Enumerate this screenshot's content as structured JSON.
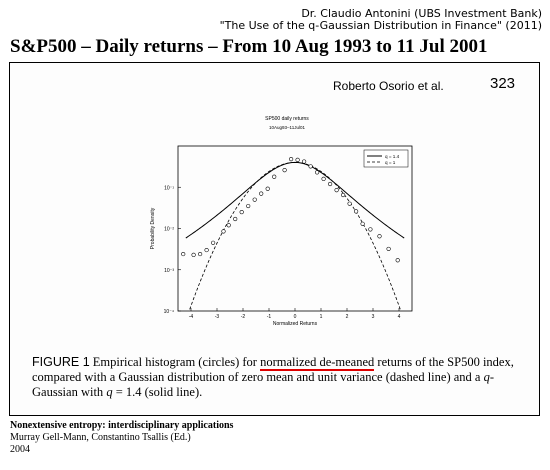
{
  "attribution": {
    "author": "Dr. Claudio Antonini (UBS Investment Bank)",
    "reference": "\"The Use of the q-Gaussian Distribution in Finance\" (2011)"
  },
  "slide_title": "S&P500 – Daily returns – From 10 Aug 1993 to 11 Jul 2001",
  "scan": {
    "author": "Roberto Osorio et al.",
    "page_number": "323"
  },
  "caption": {
    "label": "FIGURE 1",
    "part1": " Empirical histogram (circles) for ",
    "highlighted": "normalized de-meaned",
    "part2": " returns of the SP500 index, compared with a Gaussian distribution of zero mean and unit variance (dashed line) and a ",
    "q_symbol": "q",
    "part3": "-Gaussian with ",
    "q_symbol2": "q",
    "part4": " = 1.4 (solid line)."
  },
  "source": {
    "title": "Nonextensive entropy: interdisciplinary applications",
    "editors": "Murray Gell-Mann, Constantino Tsallis (Ed.)",
    "year": "2004"
  },
  "colors": {
    "underline": "#e00000",
    "ink": "#000000"
  },
  "chart_data": {
    "type": "scatter",
    "title": "SP500 daily returns",
    "subtitle": "10Aug93–11Jul01",
    "xlabel": "Normalized Returns",
    "ylabel": "Probability Density",
    "log_y": true,
    "xlim": [
      -4.5,
      4.5
    ],
    "ylim": [
      0.0001,
      1
    ],
    "x_ticks": [
      -4,
      -3,
      -2,
      -1,
      0,
      1,
      2,
      3,
      4
    ],
    "x_tick_labels": [
      "-4",
      "-3",
      "-2",
      "-1",
      "0",
      "1",
      "2",
      "3",
      "4"
    ],
    "y_ticks": [
      0.1,
      0.01,
      0.001,
      0.0001
    ],
    "y_tick_labels": [
      "10⁻¹",
      "10⁻²",
      "10⁻³",
      "10⁻⁴"
    ],
    "legend": {
      "position": "top-right",
      "entries": [
        "q = 1.4",
        "q = 1"
      ]
    },
    "series": [
      {
        "name": "Empirical histogram",
        "style": "circles",
        "x": [
          -4.3,
          -3.9,
          -3.65,
          -3.4,
          -3.15,
          -2.75,
          -2.55,
          -2.3,
          -2.05,
          -1.8,
          -1.55,
          -1.3,
          -1.05,
          -0.8,
          -0.4,
          -0.15,
          0.1,
          0.35,
          0.6,
          0.85,
          1.1,
          1.35,
          1.6,
          1.85,
          2.1,
          2.35,
          2.6,
          2.9,
          3.25,
          3.6,
          3.95
        ],
        "y": [
          0.0024,
          0.0023,
          0.0024,
          0.003,
          0.0045,
          0.0085,
          0.012,
          0.017,
          0.025,
          0.035,
          0.05,
          0.07,
          0.092,
          0.18,
          0.26,
          0.48,
          0.46,
          0.42,
          0.32,
          0.23,
          0.16,
          0.12,
          0.085,
          0.065,
          0.04,
          0.026,
          0.013,
          0.0095,
          0.0065,
          0.0032,
          0.0017
        ]
      },
      {
        "name": "q = 1.4",
        "style": "solid",
        "q": 1.4
      },
      {
        "name": "q = 1",
        "style": "dashed",
        "q": 1
      }
    ]
  }
}
